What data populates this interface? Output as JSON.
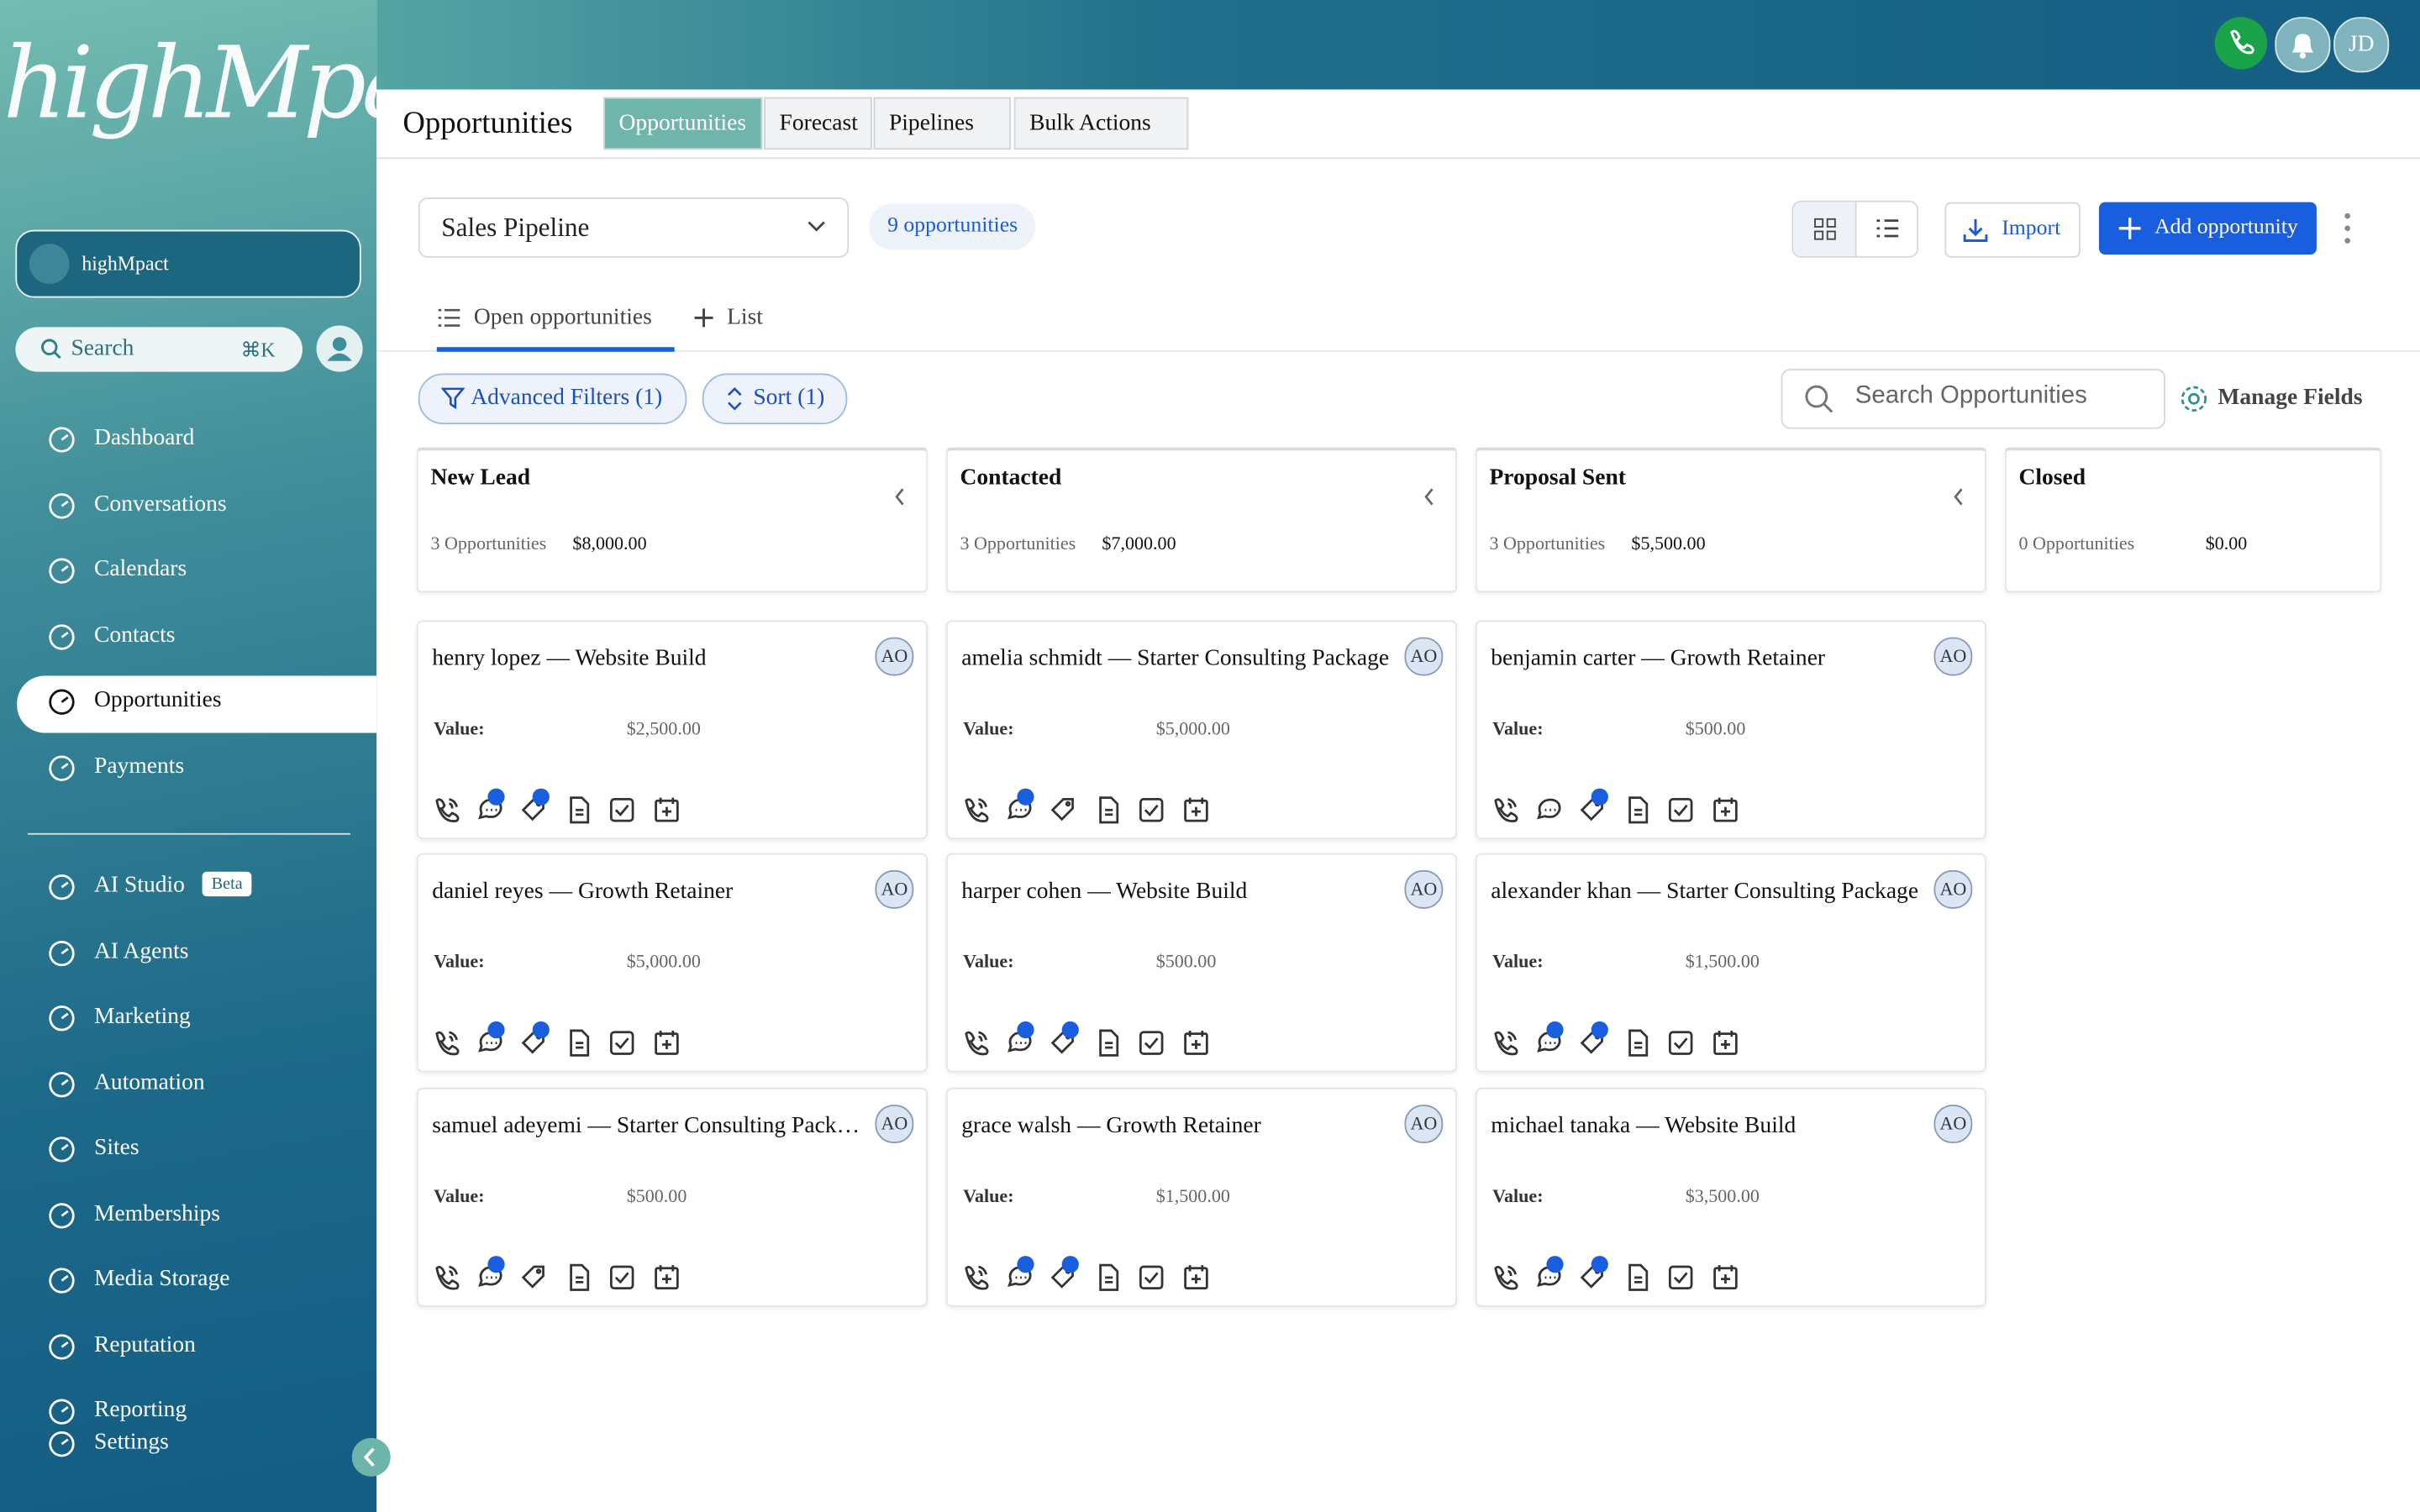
{
  "brand": {
    "logo": "highMpact",
    "account": "highMpact"
  },
  "header": {
    "avatar": "JD"
  },
  "sidebar": {
    "search": "Search",
    "shortcut": "⌘K",
    "nav": [
      {
        "label": "Dashboard"
      },
      {
        "label": "Conversations"
      },
      {
        "label": "Calendars"
      },
      {
        "label": "Contacts"
      },
      {
        "label": "Opportunities",
        "active": true
      },
      {
        "label": "Payments"
      }
    ],
    "tools": [
      {
        "label": "AI Studio",
        "badge": "Beta"
      },
      {
        "label": "AI Agents"
      },
      {
        "label": "Marketing"
      },
      {
        "label": "Automation"
      },
      {
        "label": "Sites"
      },
      {
        "label": "Memberships"
      },
      {
        "label": "Media Storage"
      },
      {
        "label": "Reputation"
      },
      {
        "label": "Reporting"
      },
      {
        "label": "Settings"
      }
    ]
  },
  "page": {
    "title": "Opportunities",
    "tabs": [
      {
        "label": "Opportunities",
        "active": true
      },
      {
        "label": "Forecast"
      },
      {
        "label": "Pipelines"
      },
      {
        "label": "Bulk Actions"
      }
    ],
    "pipeline": "Sales Pipeline",
    "count": "9 opportunities",
    "import": "Import",
    "add": "Add opportunity",
    "views": [
      "Open opportunities",
      "List"
    ],
    "filters": "Advanced Filters (1)",
    "sort": "Sort (1)",
    "search_placeholder": "Search Opportunities",
    "manage_fields": "Manage Fields"
  },
  "board": {
    "value_label": "Value:",
    "columns": [
      {
        "name": "New Lead",
        "count": "3 Opportunities",
        "total": "$8,000.00",
        "cards": [
          {
            "title": "henry lopez — Website Build",
            "owner": "AO",
            "value": "$2,500.00",
            "chat_dot": true,
            "tag_dot": true
          },
          {
            "title": "daniel reyes — Growth Retainer",
            "owner": "AO",
            "value": "$5,000.00",
            "chat_dot": true,
            "tag_dot": true
          },
          {
            "title": "samuel adeyemi — Starter Consulting Package",
            "owner": "AO",
            "value": "$500.00",
            "chat_dot": true,
            "tag_dot": false
          }
        ]
      },
      {
        "name": "Contacted",
        "count": "3 Opportunities",
        "total": "$7,000.00",
        "cards": [
          {
            "title": "amelia schmidt — Starter Consulting Package",
            "owner": "AO",
            "value": "$5,000.00",
            "chat_dot": true,
            "tag_dot": false
          },
          {
            "title": "harper cohen — Website Build",
            "owner": "AO",
            "value": "$500.00",
            "chat_dot": true,
            "tag_dot": true
          },
          {
            "title": "grace walsh — Growth Retainer",
            "owner": "AO",
            "value": "$1,500.00",
            "chat_dot": true,
            "tag_dot": true
          }
        ]
      },
      {
        "name": "Proposal Sent",
        "count": "3 Opportunities",
        "total": "$5,500.00",
        "cards": [
          {
            "title": "benjamin carter — Growth Retainer",
            "owner": "AO",
            "value": "$500.00",
            "chat_dot": false,
            "tag_dot": true
          },
          {
            "title": "alexander khan — Starter Consulting Package",
            "owner": "AO",
            "value": "$1,500.00",
            "chat_dot": true,
            "tag_dot": true
          },
          {
            "title": "michael tanaka — Website Build",
            "owner": "AO",
            "value": "$3,500.00",
            "chat_dot": true,
            "tag_dot": true
          }
        ]
      },
      {
        "name": "Closed",
        "count": "0 Opportunities",
        "total": "$0.00",
        "cards": []
      }
    ]
  }
}
